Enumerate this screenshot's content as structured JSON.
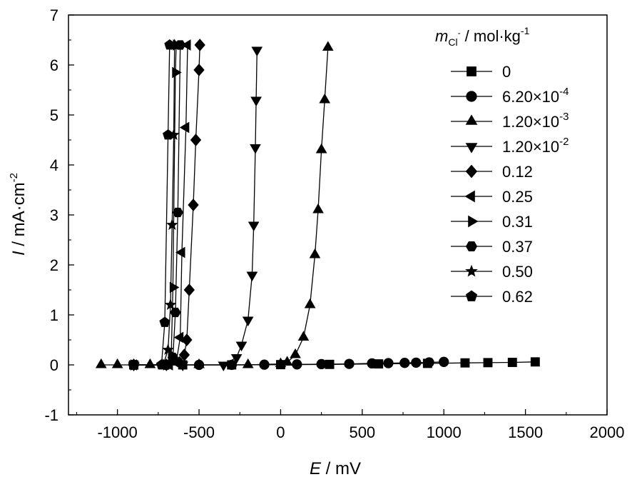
{
  "chart_data": {
    "type": "line",
    "title": "",
    "xlabel_var": "E",
    "xlabel_unit": " / mV",
    "ylabel_var": "I",
    "ylabel_unit": " / mA·cm",
    "ylabel_exp": "-2",
    "xlim": [
      -1300,
      2000
    ],
    "ylim": [
      -1,
      7
    ],
    "xticks": [
      -1000,
      -500,
      0,
      500,
      1000,
      1500,
      2000
    ],
    "yticks": [
      -1,
      0,
      1,
      2,
      3,
      4,
      5,
      6,
      7
    ],
    "grid": false,
    "legend": {
      "placement": "right",
      "title_var": "m",
      "title_sub": "Cl",
      "title_sup": "-",
      "title_unit": " / mol·kg",
      "title_unit_exp": "-1"
    },
    "series": [
      {
        "name": "0",
        "marker": "square",
        "points": [
          [
            -900,
            0.0
          ],
          [
            -600,
            0.0
          ],
          [
            -300,
            0.0
          ],
          [
            0,
            0.005
          ],
          [
            300,
            0.01
          ],
          [
            600,
            0.02
          ],
          [
            900,
            0.03
          ],
          [
            1130,
            0.04
          ],
          [
            1270,
            0.045
          ],
          [
            1420,
            0.05
          ],
          [
            1560,
            0.06
          ]
        ]
      },
      {
        "name": "6.20×10⁻⁴",
        "marker": "circle",
        "name_base": "6.20×10",
        "name_exp": "-4",
        "points": [
          [
            -900,
            0.0
          ],
          [
            -700,
            0.0
          ],
          [
            -500,
            0.0
          ],
          [
            -300,
            0.0
          ],
          [
            -100,
            0.005
          ],
          [
            100,
            0.01
          ],
          [
            250,
            0.015
          ],
          [
            420,
            0.02
          ],
          [
            560,
            0.03
          ],
          [
            660,
            0.035
          ],
          [
            760,
            0.04
          ],
          [
            830,
            0.045
          ],
          [
            910,
            0.05
          ],
          [
            1000,
            0.06
          ]
        ]
      },
      {
        "name": "1.20×10⁻³",
        "marker": "triangle-up",
        "name_base": "1.20×10",
        "name_exp": "-3",
        "points": [
          [
            -1100,
            0.0
          ],
          [
            -1000,
            0.0
          ],
          [
            -800,
            0.0
          ],
          [
            -500,
            0.0
          ],
          [
            -200,
            0.0
          ],
          [
            0,
            0.02
          ],
          [
            40,
            0.05
          ],
          [
            90,
            0.2
          ],
          [
            140,
            0.55
          ],
          [
            180,
            1.2
          ],
          [
            210,
            2.2
          ],
          [
            230,
            3.1
          ],
          [
            250,
            4.3
          ],
          [
            270,
            5.3
          ],
          [
            290,
            6.35
          ]
        ]
      },
      {
        "name": "1.20×10⁻²",
        "marker": "triangle-down",
        "name_base": "1.20×10",
        "name_exp": "-2",
        "points": [
          [
            -900,
            0.0
          ],
          [
            -600,
            0.0
          ],
          [
            -350,
            0.0
          ],
          [
            -270,
            0.15
          ],
          [
            -240,
            0.4
          ],
          [
            -200,
            0.9
          ],
          [
            -175,
            1.8
          ],
          [
            -165,
            2.8
          ],
          [
            -155,
            4.35
          ],
          [
            -150,
            5.3
          ],
          [
            -145,
            6.3
          ]
        ]
      },
      {
        "name": "0.12",
        "marker": "diamond",
        "points": [
          [
            -900,
            0.0
          ],
          [
            -700,
            0.0
          ],
          [
            -620,
            0.05
          ],
          [
            -590,
            0.2
          ],
          [
            -575,
            0.5
          ],
          [
            -560,
            1.5
          ],
          [
            -535,
            3.2
          ],
          [
            -520,
            4.5
          ],
          [
            -500,
            5.9
          ],
          [
            -495,
            6.4
          ]
        ]
      },
      {
        "name": "0.25",
        "marker": "triangle-left",
        "points": [
          [
            -900,
            0.0
          ],
          [
            -680,
            0.0
          ],
          [
            -640,
            0.05
          ],
          [
            -615,
            0.55
          ],
          [
            -605,
            2.25
          ],
          [
            -580,
            4.75
          ],
          [
            -570,
            6.4
          ]
        ]
      },
      {
        "name": "0.31",
        "marker": "triangle-right",
        "points": [
          [
            -900,
            0.0
          ],
          [
            -700,
            0.0
          ],
          [
            -670,
            0.2
          ],
          [
            -660,
            1.55
          ],
          [
            -645,
            5.85
          ],
          [
            -640,
            6.4
          ]
        ]
      },
      {
        "name": "0.37",
        "marker": "hexagon",
        "points": [
          [
            -900,
            0.0
          ],
          [
            -700,
            0.0
          ],
          [
            -660,
            0.15
          ],
          [
            -645,
            1.05
          ],
          [
            -630,
            3.05
          ],
          [
            -615,
            6.4
          ]
        ]
      },
      {
        "name": "0.50",
        "marker": "star",
        "points": [
          [
            -900,
            0.0
          ],
          [
            -720,
            0.0
          ],
          [
            -690,
            0.3
          ],
          [
            -675,
            1.2
          ],
          [
            -665,
            2.8
          ],
          [
            -655,
            4.6
          ],
          [
            -650,
            6.4
          ]
        ]
      },
      {
        "name": "0.62",
        "marker": "pentagon",
        "points": [
          [
            -900,
            0.0
          ],
          [
            -730,
            0.0
          ],
          [
            -710,
            0.85
          ],
          [
            -690,
            4.6
          ],
          [
            -680,
            6.4
          ]
        ]
      }
    ]
  }
}
